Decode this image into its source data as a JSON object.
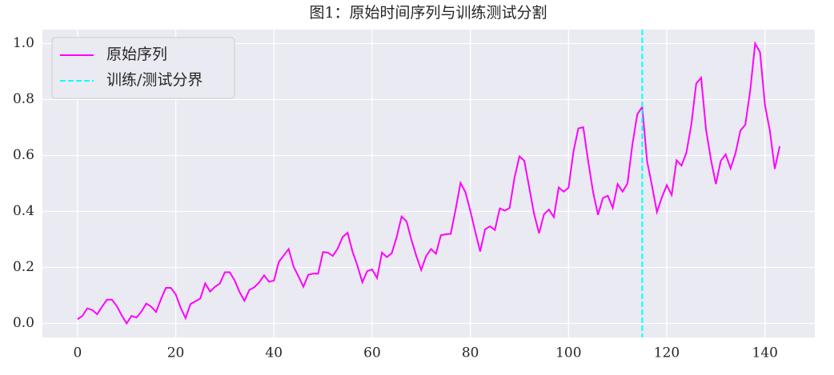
{
  "chart_data": {
    "type": "line",
    "title": "图1：原始时间序列与训练测试分割",
    "x": [
      0,
      1,
      2,
      3,
      4,
      5,
      6,
      7,
      8,
      9,
      10,
      11,
      12,
      13,
      14,
      15,
      16,
      17,
      18,
      19,
      20,
      21,
      22,
      23,
      24,
      25,
      26,
      27,
      28,
      29,
      30,
      31,
      32,
      33,
      34,
      35,
      36,
      37,
      38,
      39,
      40,
      41,
      42,
      43,
      44,
      45,
      46,
      47,
      48,
      49,
      50,
      51,
      52,
      53,
      54,
      55,
      56,
      57,
      58,
      59,
      60,
      61,
      62,
      63,
      64,
      65,
      66,
      67,
      68,
      69,
      70,
      71,
      72,
      73,
      74,
      75,
      76,
      77,
      78,
      79,
      80,
      81,
      82,
      83,
      84,
      85,
      86,
      87,
      88,
      89,
      90,
      91,
      92,
      93,
      94,
      95,
      96,
      97,
      98,
      99,
      100,
      101,
      102,
      103,
      104,
      105,
      106,
      107,
      108,
      109,
      110,
      111,
      112,
      113,
      114,
      115,
      116,
      117,
      118,
      119,
      120,
      121,
      122,
      123,
      124,
      125,
      126,
      127,
      128,
      129,
      130,
      131,
      132,
      133,
      134,
      135,
      136,
      137,
      138,
      139,
      140,
      141,
      142,
      143
    ],
    "series": [
      {
        "name": "原始序列",
        "color": "#ff00ff",
        "values": [
          0.015,
          0.027,
          0.054,
          0.048,
          0.033,
          0.06,
          0.085,
          0.085,
          0.062,
          0.029,
          0,
          0.027,
          0.021,
          0.042,
          0.071,
          0.06,
          0.041,
          0.087,
          0.127,
          0.127,
          0.104,
          0.056,
          0.019,
          0.069,
          0.079,
          0.089,
          0.143,
          0.114,
          0.131,
          0.143,
          0.183,
          0.183,
          0.154,
          0.112,
          0.081,
          0.12,
          0.129,
          0.147,
          0.172,
          0.149,
          0.153,
          0.22,
          0.243,
          0.266,
          0.203,
          0.168,
          0.131,
          0.174,
          0.178,
          0.178,
          0.255,
          0.253,
          0.241,
          0.268,
          0.309,
          0.324,
          0.257,
          0.207,
          0.147,
          0.187,
          0.193,
          0.162,
          0.253,
          0.237,
          0.251,
          0.309,
          0.382,
          0.365,
          0.299,
          0.241,
          0.191,
          0.241,
          0.266,
          0.249,
          0.315,
          0.319,
          0.32,
          0.407,
          0.502,
          0.469,
          0.402,
          0.328,
          0.257,
          0.336,
          0.347,
          0.334,
          0.411,
          0.403,
          0.413,
          0.521,
          0.597,
          0.581,
          0.485,
          0.39,
          0.322,
          0.39,
          0.407,
          0.38,
          0.486,
          0.471,
          0.485,
          0.614,
          0.697,
          0.701,
          0.579,
          0.469,
          0.388,
          0.448,
          0.456,
          0.413,
          0.498,
          0.471,
          0.5,
          0.639,
          0.747,
          0.774,
          0.579,
          0.492,
          0.398,
          0.45,
          0.494,
          0.459,
          0.583,
          0.564,
          0.61,
          0.71,
          0.857,
          0.878,
          0.693,
          0.585,
          0.498,
          0.581,
          0.604,
          0.554,
          0.608,
          0.689,
          0.71,
          0.832,
          1.0,
          0.969,
          0.78,
          0.689,
          0.552,
          0.633
        ]
      }
    ],
    "vlines": [
      {
        "name": "训练/测试分界",
        "x": 115,
        "color": "#00ffff",
        "style": "dashed"
      }
    ],
    "xlim": [
      -7.15,
      150.15
    ],
    "xticks": [
      0,
      20,
      40,
      60,
      80,
      100,
      120,
      140
    ],
    "ylim": [
      -0.05,
      1.05
    ],
    "yticks": [
      {
        "value": 0,
        "label": "0.0"
      },
      0.2,
      0.4,
      0.6,
      0.8,
      {
        "value": 1,
        "label": "1.0"
      }
    ],
    "grid": true,
    "legend": "upper left"
  }
}
